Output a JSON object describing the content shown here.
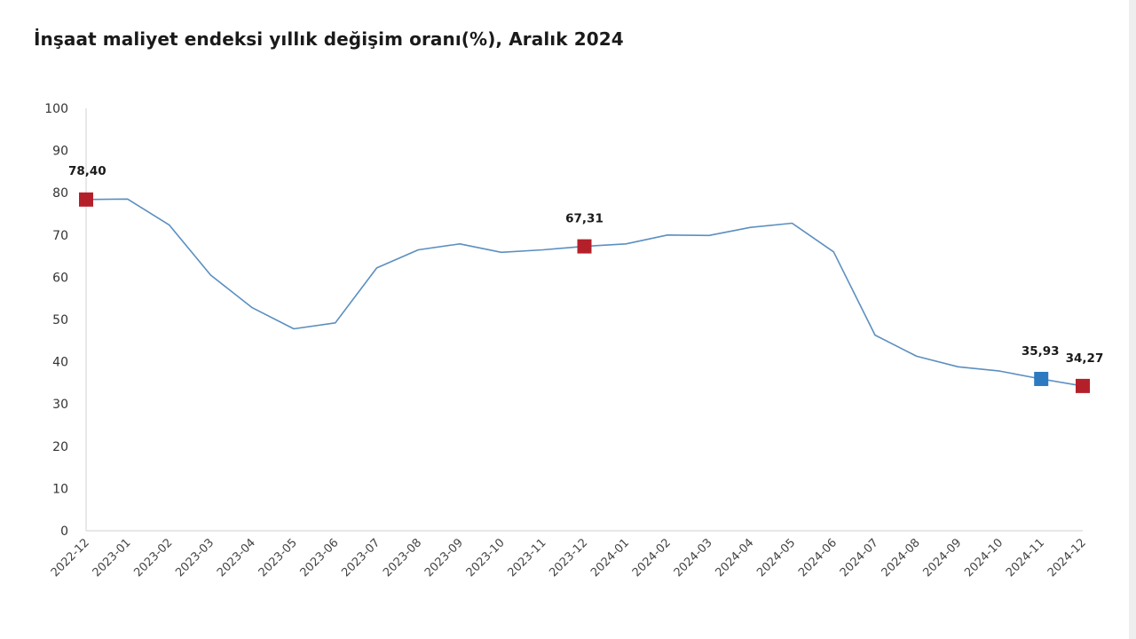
{
  "chart_data": {
    "type": "line",
    "title": "İnşaat maliyet endeksi yıllık değişim oranı(%), Aralık 2024",
    "xlabel": "",
    "ylabel": "",
    "ylim": [
      0,
      100
    ],
    "yticks": [
      0,
      10,
      20,
      30,
      40,
      50,
      60,
      70,
      80,
      90,
      100
    ],
    "grid": false,
    "legend": "none",
    "categories": [
      "2022-12",
      "2023-01",
      "2023-02",
      "2023-03",
      "2023-04",
      "2023-05",
      "2023-06",
      "2023-07",
      "2023-08",
      "2023-09",
      "2023-10",
      "2023-11",
      "2023-12",
      "2024-01",
      "2024-02",
      "2024-03",
      "2024-04",
      "2024-05",
      "2024-06",
      "2024-07",
      "2024-08",
      "2024-09",
      "2024-10",
      "2024-11",
      "2024-12"
    ],
    "series": [
      {
        "values": [
          78.4,
          78.5,
          72.4,
          60.5,
          52.8,
          47.8,
          49.2,
          62.2,
          66.5,
          67.9,
          65.9,
          66.5,
          67.31,
          67.9,
          70.0,
          69.9,
          71.8,
          72.8,
          66.0,
          46.3,
          41.3,
          38.8,
          37.8,
          35.93,
          34.27
        ],
        "color": "#5b8fc0"
      }
    ],
    "markers": [
      {
        "index": 0,
        "label": "78,40",
        "color": "#b4202a"
      },
      {
        "index": 12,
        "label": "67,31",
        "color": "#b4202a"
      },
      {
        "index": 23,
        "label": "35,93",
        "color": "#2e7ac0"
      },
      {
        "index": 24,
        "label": "34,27",
        "color": "#b4202a"
      }
    ]
  }
}
